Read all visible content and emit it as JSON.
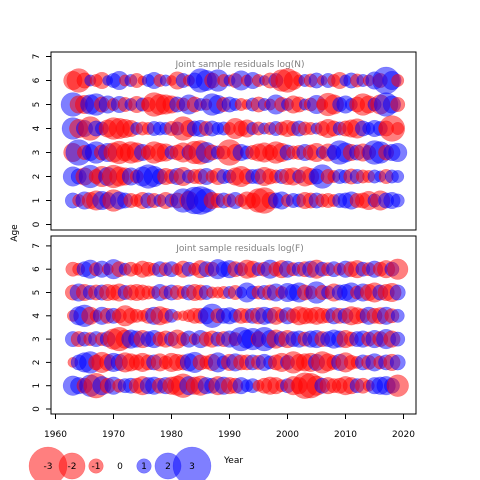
{
  "chart_data": [
    {
      "type": "scatter",
      "title": "Joint sample residuals log(N)",
      "ylabel": "Age",
      "xlabel": "Year",
      "xlim": [
        1960,
        2020
      ],
      "ylim": [
        0,
        7
      ],
      "x_ticks": [
        "1960",
        "1970",
        "1980",
        "1990",
        "2000",
        "2010",
        "2020"
      ],
      "y_ticks": [
        "0",
        "1",
        "2",
        "3",
        "4",
        "5",
        "6",
        "7"
      ],
      "grid": false,
      "years": [
        1963,
        1964,
        1965,
        1966,
        1967,
        1968,
        1969,
        1970,
        1971,
        1972,
        1973,
        1974,
        1975,
        1976,
        1977,
        1978,
        1979,
        1980,
        1981,
        1982,
        1983,
        1984,
        1985,
        1986,
        1987,
        1988,
        1989,
        1990,
        1991,
        1992,
        1993,
        1994,
        1995,
        1996,
        1997,
        1998,
        1999,
        2000,
        2001,
        2002,
        2003,
        2004,
        2005,
        2006,
        2007,
        2008,
        2009,
        2010,
        2011,
        2012,
        2013,
        2014,
        2015,
        2016,
        2017,
        2018,
        2019
      ],
      "series": [
        {
          "age": 6,
          "residuals": [
            -1.5,
            -2.0,
            -1.2,
            0.8,
            -0.9,
            -1.3,
            0.7,
            1.1,
            1.5,
            -0.8,
            0.9,
            -1.1,
            -0.6,
            0.9,
            1.3,
            -0.9,
            0.8,
            -0.7,
            -1.4,
            1.1,
            -0.8,
            1.2,
            2.0,
            1.7,
            -1.2,
            1.8,
            -0.9,
            0.8,
            -1.1,
            1.6,
            -0.8,
            1.3,
            -0.9,
            0.7,
            -1.2,
            1.1,
            -1.8,
            -2.0,
            -1.5,
            -0.8,
            0.9,
            -1.0,
            1.2,
            -0.7,
            1.1,
            -0.9,
            -1.3,
            0.8,
            1.2,
            -1.0,
            0.9,
            -0.8,
            1.4,
            -1.1,
            2.3,
            1.5,
            -0.9
          ]
        },
        {
          "age": 5,
          "residuals": [
            2.0,
            -1.4,
            -1.5,
            1.6,
            1.8,
            -1.2,
            1.4,
            -0.9,
            1.3,
            -1.1,
            0.9,
            -1.3,
            1.0,
            -1.1,
            -2.0,
            -1.7,
            -1.6,
            -1.4,
            1.2,
            -1.0,
            1.6,
            -1.2,
            0.9,
            -0.8,
            1.8,
            1.5,
            -1.1,
            1.2,
            0.9,
            -0.9,
            -0.7,
            1.0,
            -1.2,
            0.9,
            -0.8,
            1.6,
            -1.1,
            0.9,
            -1.4,
            -1.2,
            0.8,
            -1.0,
            1.5,
            -0.8,
            -1.9,
            -1.6,
            1.1,
            1.4,
            0.9,
            -1.2,
            -1.8,
            -1.4,
            1.0,
            -1.6,
            2.0,
            1.4,
            -1.1
          ]
        },
        {
          "age": 4,
          "residuals": [
            1.8,
            -1.5,
            1.3,
            -2.0,
            1.2,
            1.0,
            -1.4,
            -1.8,
            -1.7,
            -1.5,
            -1.3,
            0.9,
            -1.0,
            -0.9,
            1.1,
            1.0,
            0.9,
            -1.1,
            1.0,
            -2.0,
            -1.3,
            1.2,
            1.3,
            -1.1,
            1.2,
            0.9,
            1.0,
            -0.9,
            -1.7,
            -1.2,
            -1.4,
            0.9,
            -1.0,
            0.8,
            -0.9,
            1.1,
            -1.0,
            -1.3,
            -1.1,
            1.2,
            -1.0,
            -0.9,
            0.8,
            -1.1,
            -1.5,
            -1.2,
            1.0,
            -1.2,
            -1.4,
            -1.6,
            1.2,
            0.9,
            1.3,
            1.1,
            -1.2,
            -2.2,
            -0.9
          ]
        },
        {
          "age": 3,
          "residuals": [
            -1.5,
            2.2,
            -1.1,
            1.3,
            1.8,
            -1.2,
            1.5,
            -1.6,
            -1.9,
            -1.4,
            -1.8,
            -1.6,
            1.3,
            -1.1,
            -1.8,
            -1.5,
            -1.4,
            1.0,
            -1.2,
            -1.6,
            1.1,
            -1.9,
            -2.0,
            1.7,
            -1.2,
            1.0,
            -1.0,
            -2.2,
            -1.3,
            1.3,
            1.0,
            -1.1,
            -1.4,
            -1.6,
            -1.2,
            -1.8,
            -1.5,
            1.2,
            -1.0,
            -1.1,
            1.3,
            -1.2,
            -1.5,
            0.9,
            -1.4,
            1.1,
            2.0,
            1.6,
            -1.3,
            1.2,
            -1.4,
            -1.1,
            2.0,
            1.8,
            -1.2,
            1.3,
            1.5
          ]
        },
        {
          "age": 2,
          "residuals": [
            1.6,
            1.2,
            -1.4,
            1.9,
            -1.1,
            -1.7,
            1.5,
            -1.9,
            -1.6,
            -1.4,
            1.4,
            -1.0,
            1.6,
            2.0,
            1.7,
            1.2,
            -1.3,
            -1.1,
            1.3,
            -1.5,
            1.0,
            -1.1,
            -1.2,
            1.3,
            -0.9,
            -1.3,
            1.1,
            1.0,
            -1.4,
            -1.7,
            -1.2,
            1.1,
            1.2,
            -1.5,
            -1.2,
            -1.0,
            1.1,
            -1.3,
            -1.4,
            1.0,
            -1.6,
            -1.3,
            1.2,
            2.0,
            -1.1,
            -0.9,
            1.1,
            1.0,
            -1.2,
            1.1,
            -1.0,
            -0.9,
            1.0,
            0.8,
            -1.1,
            1.0,
            0.9
          ]
        },
        {
          "age": 1,
          "residuals": [
            1.2,
            -0.9,
            1.4,
            -1.3,
            -1.6,
            1.5,
            1.3,
            -1.8,
            1.4,
            1.2,
            -1.1,
            -0.9,
            -1.3,
            1.2,
            -1.1,
            0.9,
            -1.3,
            1.0,
            -1.2,
            2.0,
            -1.5,
            2.3,
            2.4,
            2.0,
            -1.3,
            -1.1,
            1.2,
            -1.0,
            1.3,
            -0.9,
            -1.4,
            -1.2,
            -2.0,
            -2.2,
            -1.3,
            1.2,
            1.4,
            -0.9,
            1.1,
            1.0,
            -1.3,
            -1.2,
            1.2,
            -1.0,
            -1.1,
            -0.9,
            1.1,
            1.2,
            1.4,
            -1.1,
            -1.2,
            -1.5,
            1.0,
            -1.6,
            1.2,
            1.3,
            1.0
          ]
        }
      ]
    },
    {
      "type": "scatter",
      "title": "Joint sample residuals log(F)",
      "ylabel": "Age",
      "xlabel": "Year",
      "xlim": [
        1960,
        2020
      ],
      "ylim": [
        0,
        7
      ],
      "x_ticks": [
        "1960",
        "1970",
        "1980",
        "1990",
        "2000",
        "2010",
        "2020"
      ],
      "y_ticks": [
        "0",
        "1",
        "2",
        "3",
        "4",
        "5",
        "6",
        "7"
      ],
      "grid": false,
      "years": [
        1963,
        1964,
        1965,
        1966,
        1967,
        1968,
        1969,
        1970,
        1971,
        1972,
        1973,
        1974,
        1975,
        1976,
        1977,
        1978,
        1979,
        1980,
        1981,
        1982,
        1983,
        1984,
        1985,
        1986,
        1987,
        1988,
        1989,
        1990,
        1991,
        1992,
        1993,
        1994,
        1995,
        1996,
        1997,
        1998,
        1999,
        2000,
        2001,
        2002,
        2003,
        2004,
        2005,
        2006,
        2007,
        2008,
        2009,
        2010,
        2011,
        2012,
        2013,
        2014,
        2015,
        2016,
        2017,
        2018,
        2019
      ],
      "series": [
        {
          "age": 6,
          "residuals": [
            -1.1,
            -0.9,
            1.2,
            1.5,
            -1.0,
            1.3,
            -0.8,
            1.6,
            -1.2,
            0.9,
            -1.1,
            -0.8,
            -1.3,
            -1.1,
            -0.9,
            1.2,
            -1.0,
            1.2,
            -0.8,
            -1.3,
            1.1,
            -0.9,
            -1.4,
            1.2,
            -1.1,
            1.6,
            1.2,
            1.4,
            -1.2,
            1.0,
            -1.5,
            -1.3,
            1.0,
            -1.1,
            1.5,
            -1.1,
            -1.4,
            1.3,
            -1.0,
            1.1,
            -1.2,
            1.3,
            -1.5,
            1.1,
            -1.0,
            1.2,
            -0.9,
            1.3,
            -1.2,
            -1.4,
            1.1,
            -1.0,
            1.3,
            -1.1,
            -1.4,
            1.1,
            -1.7
          ]
        },
        {
          "age": 5,
          "residuals": [
            -1.2,
            1.4,
            -1.3,
            1.1,
            -1.2,
            1.2,
            -1.3,
            -1.2,
            -1.4,
            1.1,
            -1.2,
            -1.3,
            -1.2,
            -1.0,
            -0.9,
            1.3,
            -1.0,
            1.2,
            -1.1,
            -0.9,
            1.2,
            -1.3,
            -1.2,
            1.1,
            -0.8,
            -0.8,
            -0.9,
            0.9,
            -1.1,
            0.8,
            1.6,
            1.0,
            -1.0,
            1.1,
            -1.2,
            1.4,
            -0.9,
            1.5,
            1.3,
            1.6,
            -1.2,
            -1.0,
            1.8,
            -1.1,
            1.0,
            -1.4,
            1.2,
            1.3,
            1.6,
            -1.0,
            1.4,
            -1.3,
            -1.6,
            1.2,
            -1.3,
            -1.5,
            1.2
          ]
        },
        {
          "age": 4,
          "residuals": [
            -0.8,
            1.5,
            1.8,
            -1.4,
            -0.9,
            1.4,
            -1.2,
            1.2,
            -1.1,
            -1.7,
            -1.2,
            -1.0,
            -0.8,
            -1.2,
            1.4,
            -1.5,
            -1.2,
            1.0,
            -0.6,
            -0.7,
            -0.9,
            -1.2,
            -1.2,
            1.3,
            2.0,
            -1.1,
            1.2,
            1.3,
            1.0,
            -1.2,
            -1.1,
            1.2,
            -1.3,
            1.4,
            1.2,
            -1.4,
            -1.0,
            1.3,
            -1.1,
            -1.5,
            -1.3,
            -1.2,
            -1.4,
            -1.2,
            -1.1,
            1.3,
            -1.2,
            1.2,
            -1.5,
            -1.3,
            -1.1,
            1.4,
            -1.2,
            -1.3,
            1.4,
            -1.1,
            1.0
          ]
        },
        {
          "age": 3,
          "residuals": [
            1.2,
            -1.2,
            1.1,
            -1.0,
            1.2,
            -1.0,
            1.2,
            -1.7,
            -2.0,
            -1.5,
            1.5,
            1.3,
            -1.4,
            1.2,
            1.4,
            -1.1,
            -1.3,
            1.1,
            -1.5,
            -1.0,
            1.3,
            -0.8,
            1.4,
            -1.1,
            -1.3,
            1.1,
            -1.2,
            1.3,
            -1.0,
            2.0,
            1.5,
            1.8,
            -1.2,
            2.0,
            1.4,
            -1.5,
            1.2,
            -1.4,
            1.2,
            1.3,
            -1.1,
            1.3,
            1.4,
            -1.2,
            1.2,
            1.5,
            1.3,
            -1.4,
            -1.1,
            1.2,
            1.3,
            -1.1,
            1.4,
            -1.2,
            1.6,
            -1.3,
            1.1
          ]
        },
        {
          "age": 2,
          "residuals": [
            -0.7,
            1.2,
            1.6,
            1.8,
            -1.2,
            -1.7,
            -1.3,
            1.5,
            1.3,
            -1.6,
            -1.4,
            -1.2,
            -1.5,
            -1.2,
            1.2,
            -1.4,
            -1.0,
            -1.5,
            -1.3,
            -1.2,
            1.4,
            1.7,
            -1.2,
            -1.0,
            -1.3,
            1.6,
            1.0,
            -1.3,
            1.4,
            -1.2,
            -1.2,
            1.2,
            -1.1,
            1.3,
            1.0,
            -1.2,
            -1.5,
            1.1,
            -1.8,
            -1.3,
            -1.4,
            -1.5,
            1.3,
            -1.8,
            -1.4,
            -1.1,
            1.3,
            -1.6,
            -1.1,
            -0.9,
            1.2,
            -1.1,
            1.4,
            -1.0,
            1.2,
            -1.3,
            1.2
          ]
        },
        {
          "age": 1,
          "residuals": [
            1.6,
            1.3,
            -1.2,
            1.8,
            -2.1,
            1.5,
            -1.2,
            1.4,
            -1.0,
            1.1,
            1.2,
            -1.2,
            -1.5,
            1.3,
            1.4,
            -1.2,
            1.3,
            -1.4,
            -1.6,
            -2.0,
            1.5,
            -1.4,
            -1.6,
            1.3,
            1.2,
            -1.5,
            1.4,
            -1.3,
            -1.2,
            1.3,
            0.9,
            1.1,
            -0.8,
            -1.2,
            -1.4,
            -1.3,
            -0.9,
            1.1,
            -1.5,
            -1.3,
            -2.2,
            -2.1,
            -1.6,
            1.2,
            -1.3,
            -1.1,
            -1.2,
            -1.5,
            -1.3,
            1.1,
            -1.2,
            -0.8,
            1.3,
            1.4,
            1.5,
            1.2,
            -1.8
          ]
        }
      ]
    }
  ],
  "legend": {
    "labels": [
      "-3",
      "-2",
      "-1",
      "0",
      "1",
      "2",
      "3"
    ],
    "values": [
      -3,
      -2,
      -1,
      0,
      1,
      2,
      3
    ]
  },
  "colors": {
    "positive": "#0000ff",
    "negative": "#ff0000",
    "opacity": 0.5
  }
}
